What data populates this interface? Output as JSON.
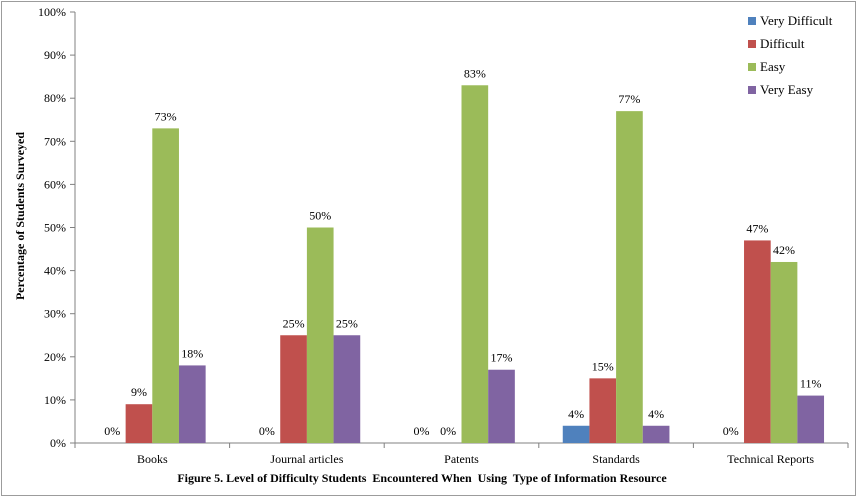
{
  "chart_data": {
    "type": "bar",
    "title": "",
    "caption": "Figure 5. Level of Difficulty Students  Encountered When  Using  Type of Information Resource",
    "xlabel": "",
    "ylabel": "Percentage of Students  Surveyed",
    "ylim": [
      0,
      100
    ],
    "y_ticks": [
      "0%",
      "10%",
      "20%",
      "30%",
      "40%",
      "50%",
      "60%",
      "70%",
      "80%",
      "90%",
      "100%"
    ],
    "categories": [
      "Books",
      "Journal articles",
      "Patents",
      "Standards",
      "Technical Reports"
    ],
    "series": [
      {
        "name": "Very Difficult",
        "color": "#4f81bd",
        "values": [
          0,
          0,
          0,
          4,
          0
        ],
        "labels": [
          "0%",
          "0%",
          "0%",
          "4%",
          "0%"
        ]
      },
      {
        "name": "Difficult",
        "color": "#c0504d",
        "values": [
          9,
          25,
          0,
          15,
          47
        ],
        "labels": [
          "9%",
          "25%",
          "0%",
          "15%",
          "47%"
        ]
      },
      {
        "name": "Easy",
        "color": "#9bbb59",
        "values": [
          73,
          50,
          83,
          77,
          42
        ],
        "labels": [
          "73%",
          "50%",
          "83%",
          "77%",
          "42%"
        ]
      },
      {
        "name": "Very Easy",
        "color": "#8064a2",
        "values": [
          18,
          25,
          17,
          4,
          11
        ],
        "labels": [
          "18%",
          "25%",
          "17%",
          "4%",
          "11%"
        ]
      }
    ],
    "grid": false,
    "legend_position": "top-right"
  }
}
